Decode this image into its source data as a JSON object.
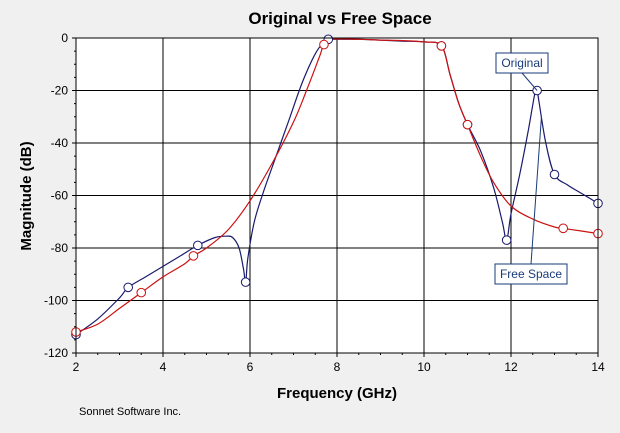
{
  "chart_data": {
    "type": "line",
    "title": "Original vs Free Space",
    "xlabel": "Frequency (GHz)",
    "ylabel": "Magnitude (dB)",
    "xlim": [
      2,
      14
    ],
    "ylim": [
      -120,
      0
    ],
    "xticks": [
      2,
      4,
      6,
      8,
      10,
      12,
      14
    ],
    "yticks": [
      0,
      -20,
      -40,
      -60,
      -80,
      -100,
      -120
    ],
    "grid": true,
    "series": [
      {
        "name": "Original",
        "color": "#1a1a6e",
        "points": [
          [
            2,
            -113
          ],
          [
            2.5,
            -107
          ],
          [
            3,
            -99
          ],
          [
            3.2,
            -95
          ],
          [
            3.6,
            -91
          ],
          [
            4,
            -87
          ],
          [
            4.4,
            -83
          ],
          [
            4.8,
            -79
          ],
          [
            5.2,
            -76
          ],
          [
            5.45,
            -75.5
          ],
          [
            5.6,
            -76
          ],
          [
            5.75,
            -80
          ],
          [
            5.85,
            -88
          ],
          [
            5.9,
            -93
          ],
          [
            5.95,
            -84
          ],
          [
            6.1,
            -70
          ],
          [
            6.3,
            -59
          ],
          [
            6.6,
            -45
          ],
          [
            6.9,
            -31
          ],
          [
            7.2,
            -17
          ],
          [
            7.5,
            -6
          ],
          [
            7.7,
            -1.5
          ],
          [
            7.8,
            -0.5
          ],
          [
            8,
            -0.5
          ],
          [
            8.5,
            -0.5
          ],
          [
            9,
            -0.8
          ],
          [
            9.5,
            -1.2
          ],
          [
            10,
            -1.5
          ],
          [
            10.4,
            -3
          ],
          [
            10.6,
            -14
          ],
          [
            10.8,
            -25
          ],
          [
            11,
            -33
          ],
          [
            11.3,
            -43
          ],
          [
            11.6,
            -57
          ],
          [
            11.8,
            -70
          ],
          [
            11.9,
            -77
          ],
          [
            12,
            -67
          ],
          [
            12.2,
            -52
          ],
          [
            12.4,
            -35
          ],
          [
            12.55,
            -21
          ],
          [
            12.6,
            -20
          ],
          [
            12.65,
            -25
          ],
          [
            12.8,
            -40
          ],
          [
            13,
            -52
          ],
          [
            13.3,
            -56
          ],
          [
            13.6,
            -59
          ],
          [
            14,
            -63
          ]
        ],
        "markers_x": [
          2,
          3.2,
          4.8,
          5.9,
          7.8,
          10.4,
          11,
          11.9,
          12.6,
          13,
          14
        ]
      },
      {
        "name": "Free Space",
        "color": "#cc1111",
        "points": [
          [
            2,
            -112
          ],
          [
            2.5,
            -109
          ],
          [
            3,
            -103
          ],
          [
            3.5,
            -97
          ],
          [
            4,
            -91
          ],
          [
            4.5,
            -86
          ],
          [
            4.7,
            -83
          ],
          [
            5,
            -80
          ],
          [
            5.5,
            -73
          ],
          [
            6,
            -62
          ],
          [
            6.5,
            -48
          ],
          [
            7,
            -32
          ],
          [
            7.3,
            -20
          ],
          [
            7.6,
            -7
          ],
          [
            7.7,
            -2.5
          ],
          [
            7.9,
            -0.5
          ],
          [
            8.5,
            -0.5
          ],
          [
            9,
            -0.8
          ],
          [
            9.5,
            -1
          ],
          [
            10,
            -1.5
          ],
          [
            10.4,
            -3
          ],
          [
            10.6,
            -14
          ],
          [
            10.8,
            -25
          ],
          [
            11,
            -33
          ],
          [
            11.3,
            -45
          ],
          [
            11.6,
            -55
          ],
          [
            12,
            -64
          ],
          [
            12.5,
            -69
          ],
          [
            13,
            -72
          ],
          [
            13.2,
            -72.5
          ],
          [
            13.6,
            -73.5
          ],
          [
            14,
            -74.5
          ]
        ],
        "markers_x": [
          2,
          3.5,
          4.7,
          7.7,
          10.4,
          11,
          13.2,
          14
        ]
      }
    ],
    "annotations": [
      {
        "text": "Original",
        "series": 0,
        "anchor_x": 12.6
      },
      {
        "text": "Free Space",
        "series": 0,
        "anchor_x": 12.7
      }
    ]
  },
  "footer": "Sonnet Software Inc."
}
